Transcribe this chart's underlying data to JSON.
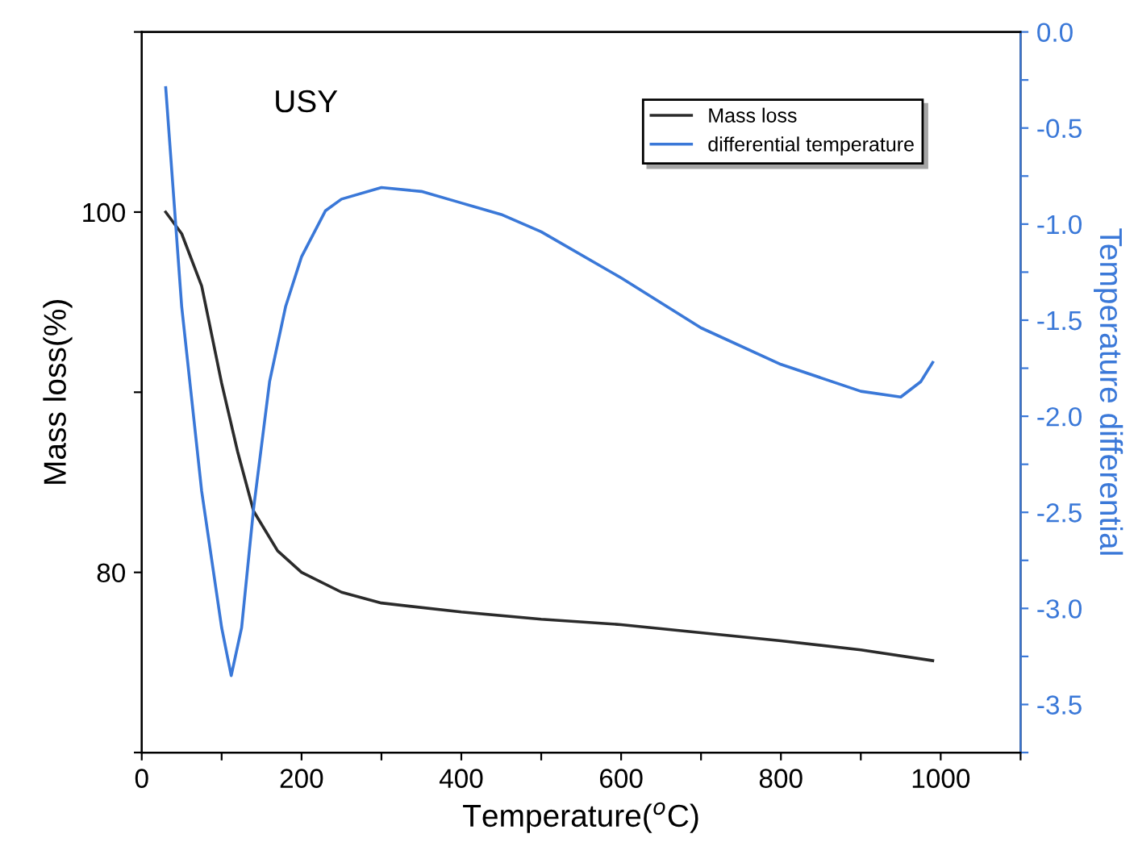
{
  "chart_data": {
    "type": "line",
    "xlabel": "Temperature($^{o}$C)",
    "ylabel": "Mass loss(%)",
    "y2label": "Temperature differential",
    "annotations": [
      "USY"
    ],
    "xlim": [
      0,
      1100
    ],
    "xticks": [
      0,
      {
        "value": 100,
        "label": null
      },
      200,
      {
        "value": 300,
        "label": null
      },
      400,
      {
        "value": 500,
        "label": null
      },
      600,
      {
        "value": 700,
        "label": null
      },
      800,
      {
        "value": 900,
        "label": null
      },
      1000,
      {
        "value": 1100,
        "label": null
      }
    ],
    "ylim": [
      70,
      110
    ],
    "yticks": [
      {
        "value": 70,
        "label": null
      },
      80,
      {
        "value": 90,
        "label": null
      },
      100,
      {
        "value": 110,
        "label": null
      }
    ],
    "y2lim": [
      -3.75,
      0
    ],
    "y2ticks": [
      {
        "value": -3.75,
        "label": null
      },
      -3.5,
      {
        "value": -3.25,
        "label": null
      },
      {
        "value": -3.0,
        "label": "-3.0"
      },
      {
        "value": -2.75,
        "label": null
      },
      -2.5,
      {
        "value": -2.25,
        "label": null
      },
      {
        "value": -2.0,
        "label": "-2.0"
      },
      {
        "value": -1.75,
        "label": null
      },
      -1.5,
      {
        "value": -1.25,
        "label": null
      },
      {
        "value": -1.0,
        "label": "-1.0"
      },
      {
        "value": -0.75,
        "label": null
      },
      -0.5,
      {
        "value": -0.25,
        "label": null
      },
      {
        "value": 0.0,
        "label": "0.0"
      }
    ],
    "grid": false,
    "legend": "top right",
    "marker": "none",
    "line_style": "solid",
    "series": [
      {
        "name": "Mass loss",
        "color": "#2b2b2b",
        "x": [
          30,
          50,
          75,
          100,
          120,
          140,
          170,
          200,
          250,
          300,
          400,
          500,
          600,
          800,
          900,
          990
        ],
        "values": [
          100,
          98.8,
          95.9,
          90.5,
          86.7,
          83.4,
          81.2,
          80,
          78.9,
          78.3,
          77.8,
          77.4,
          77.1,
          76.2,
          75.7,
          75.1
        ]
      },
      {
        "name": "differential temperature",
        "color": "#3a78d8",
        "axis": "y2",
        "x": [
          30,
          50,
          75,
          100,
          112,
          125,
          140,
          160,
          180,
          200,
          230,
          250,
          300,
          350,
          400,
          450,
          500,
          600,
          700,
          800,
          900,
          950,
          975,
          990
        ],
        "values": [
          -0.29,
          -1.43,
          -2.39,
          -3.1,
          -3.35,
          -3.1,
          -2.48,
          -1.82,
          -1.43,
          -1.17,
          -0.93,
          -0.87,
          -0.81,
          -0.83,
          -0.89,
          -0.95,
          -1.04,
          -1.28,
          -1.54,
          -1.73,
          -1.87,
          -1.9,
          -1.82,
          -1.72
        ]
      }
    ]
  }
}
